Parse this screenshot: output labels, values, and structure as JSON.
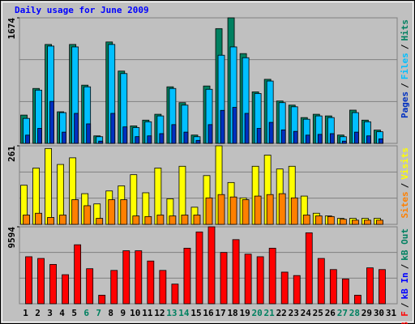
{
  "title": "Daily usage for June 2009",
  "legend_separator": "/",
  "chart_data": [
    {
      "type": "bar",
      "ylim": [
        0,
        1674
      ],
      "yticks": [
        1674
      ],
      "series": [
        {
          "name": "Hits",
          "color": "#008060",
          "values": [
            377,
            732,
            1319,
            421,
            1319,
            776,
            100,
            1352,
            964,
            233,
            310,
            388,
            754,
            543,
            111,
            765,
            1530,
            1674,
            1197,
            687,
            854,
            565,
            510,
            344,
            388,
            366,
            111,
            443,
            310,
            177,
            null
          ]
        },
        {
          "name": "Files",
          "color": "#00bfff",
          "values": [
            333,
            710,
            1297,
            410,
            1286,
            754,
            89,
            1319,
            931,
            211,
            288,
            366,
            732,
            510,
            89,
            721,
            1175,
            1286,
            1142,
            665,
            831,
            543,
            488,
            322,
            366,
            344,
            89,
            410,
            288,
            155,
            null
          ]
        },
        {
          "name": "Pages",
          "color": "#0030c0",
          "values": [
            110,
            200,
            560,
            150,
            400,
            260,
            30,
            400,
            220,
            90,
            100,
            130,
            250,
            150,
            40,
            250,
            440,
            480,
            400,
            200,
            280,
            180,
            160,
            110,
            120,
            130,
            30,
            150,
            100,
            60,
            null
          ]
        }
      ]
    },
    {
      "type": "bar",
      "ylim": [
        0,
        261
      ],
      "yticks": [
        261
      ],
      "series": [
        {
          "name": "Visits",
          "color": "#ffff00",
          "values": [
            130,
            187,
            252,
            199,
            221,
            102,
            68,
            111,
            128,
            165,
            105,
            187,
            85,
            193,
            57,
            162,
            261,
            139,
            88,
            193,
            230,
            184,
            193,
            94,
            37,
            28,
            20,
            20,
            20,
            20,
            null
          ]
        },
        {
          "name": "Sites",
          "color": "#ff8000",
          "values": [
            31,
            37,
            23,
            31,
            82,
            62,
            20,
            82,
            82,
            28,
            26,
            31,
            28,
            31,
            31,
            88,
            99,
            91,
            82,
            94,
            99,
            102,
            88,
            31,
            28,
            26,
            17,
            14,
            14,
            14,
            null
          ]
        }
      ]
    },
    {
      "type": "bar",
      "ylim": [
        0,
        9594
      ],
      "yticks": [
        9594
      ],
      "categories": [
        "1",
        "2",
        "3",
        "4",
        "5",
        "6",
        "7",
        "8",
        "9",
        "10",
        "11",
        "12",
        "13",
        "14",
        "15",
        "16",
        "17",
        "18",
        "19",
        "20",
        "21",
        "22",
        "23",
        "24",
        "25",
        "26",
        "27",
        "28",
        "29",
        "30",
        "31"
      ],
      "category_colors": [
        "#000000",
        "#000000",
        "#000000",
        "#000000",
        "#000000",
        "#008060",
        "#008060",
        "#000000",
        "#000000",
        "#000000",
        "#000000",
        "#000000",
        "#008060",
        "#008060",
        "#000000",
        "#000000",
        "#000000",
        "#000000",
        "#000000",
        "#008060",
        "#008060",
        "#000000",
        "#000000",
        "#000000",
        "#000000",
        "#000000",
        "#008060",
        "#008060",
        "#000000",
        "#000000",
        "#000000"
      ],
      "series": [
        {
          "name": "kB Out",
          "color": "#008060",
          "values": [
            0,
            0,
            0,
            0,
            0,
            0,
            0,
            0,
            0,
            0,
            0,
            0,
            0,
            0,
            0,
            0,
            0,
            0,
            0,
            0,
            0,
            0,
            0,
            0,
            0,
            0,
            0,
            0,
            0,
            0,
            null
          ]
        },
        {
          "name": "kB In",
          "color": "#0000ff",
          "values": [
            0,
            0,
            0,
            0,
            0,
            0,
            0,
            0,
            0,
            0,
            0,
            0,
            0,
            0,
            0,
            0,
            0,
            0,
            0,
            0,
            0,
            0,
            0,
            0,
            0,
            0,
            0,
            0,
            0,
            0,
            null
          ]
        },
        {
          "name": "kB F",
          "color": "#ff0000",
          "values": [
            5863,
            5650,
            4904,
            3624,
            7355,
            4371,
            1066,
            4157,
            6609,
            6609,
            5330,
            4157,
            2452,
            6929,
            8954,
            9594,
            6396,
            7995,
            6183,
            5863,
            6929,
            3944,
            3518,
            8848,
            5650,
            4264,
            3091,
            1066,
            4477,
            4264,
            null
          ]
        }
      ]
    }
  ]
}
